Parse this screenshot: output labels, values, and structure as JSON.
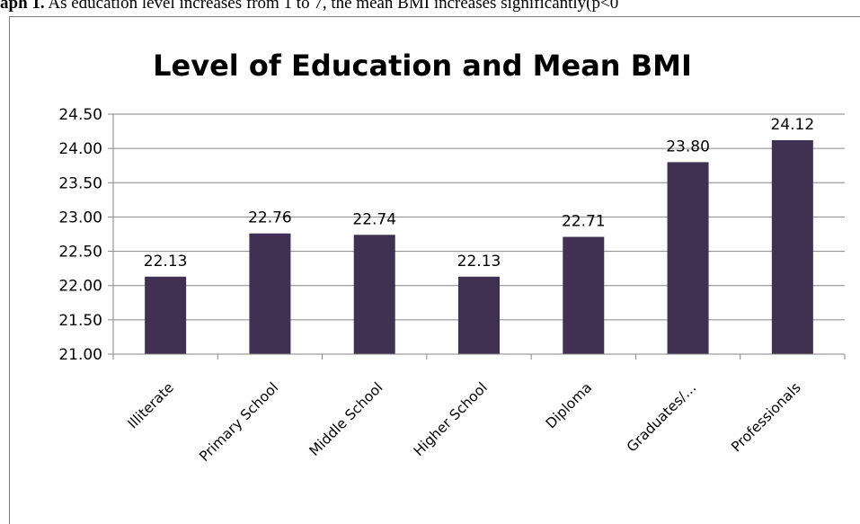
{
  "caption": {
    "prefix": "aph 1.",
    "text": " As education level increases from 1 to 7, the mean BMI  increases significantly(p<0"
  },
  "chart_data": {
    "type": "bar",
    "title": "Level of Education and Mean BMI",
    "categories": [
      "Illiterate",
      "Primary  School",
      "Middle School",
      "Higher School",
      "Diploma",
      "Graduates/…",
      "Professionals"
    ],
    "values": [
      22.13,
      22.76,
      22.74,
      22.13,
      22.71,
      23.8,
      24.12
    ],
    "data_labels": [
      "22.13",
      "22.76",
      "22.74",
      "22.13",
      "22.71",
      "23.80",
      "24.12"
    ],
    "y_ticks": [
      "21.00",
      "21.50",
      "22.00",
      "22.50",
      "23.00",
      "23.50",
      "24.00",
      "24.50"
    ],
    "ylim": [
      21.0,
      24.5
    ],
    "ystep": 0.5,
    "bar_color": "#403152",
    "grid": true,
    "xlabel": "",
    "ylabel": ""
  }
}
